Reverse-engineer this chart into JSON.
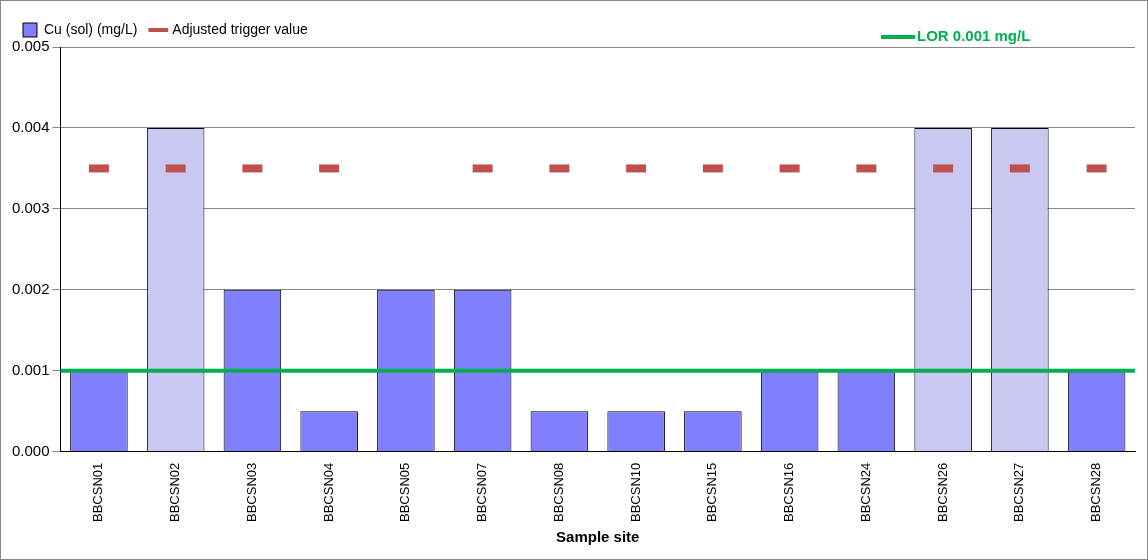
{
  "chart_data": {
    "type": "bar",
    "xlabel": "Sample site",
    "categories": [
      "BBCSN01",
      "BBCSN02",
      "BBCSN03",
      "BBCSN04",
      "BBCSN05",
      "BBCSN07",
      "BBCSN08",
      "BBCSN10",
      "BBCSN15",
      "BBCSN16",
      "BBCSN24",
      "BBCSN26",
      "BBCSN27",
      "BBCSN28"
    ],
    "series": [
      {
        "name": "Cu (sol) (mg/L)",
        "color": "#8080ff",
        "colors": [
          "#8080ff",
          "#c8c8f0",
          "#8080ff",
          "#8080ff",
          "#8080ff",
          "#8080ff",
          "#8080ff",
          "#8080ff",
          "#8080ff",
          "#8080ff",
          "#8080ff",
          "#c8c8f0",
          "#c8c8f0",
          "#8080ff"
        ],
        "values": [
          0.001,
          0.004,
          0.002,
          0.0005,
          0.002,
          0.002,
          0.0005,
          0.0005,
          0.0005,
          0.001,
          0.001,
          0.004,
          0.004,
          0.001
        ]
      },
      {
        "name": "Adjusted trigger value",
        "type": "scatter",
        "marker": "square",
        "color": "#c0504d",
        "values": [
          0.0035,
          0.0035,
          0.0035,
          0.0035,
          null,
          0.0035,
          0.0035,
          0.0035,
          0.0035,
          0.0035,
          0.0035,
          0.0035,
          0.0035,
          0.0035
        ]
      }
    ],
    "ylim": [
      0,
      0.005
    ],
    "yticks": [
      {
        "value": 0,
        "label": "0.000"
      },
      {
        "value": 0.001,
        "label": "0.001"
      },
      {
        "value": 0.002,
        "label": "0.002"
      },
      {
        "value": 0.003,
        "label": "0.003"
      },
      {
        "value": 0.004,
        "label": "0.004"
      },
      {
        "value": 0.005,
        "label": "0.005"
      }
    ],
    "grid": "y",
    "legend": "top",
    "ref_lines": [
      {
        "axis": "y",
        "value": 0.001,
        "label": "LOR 0.001 mg/L",
        "color": "#00b050"
      }
    ]
  }
}
